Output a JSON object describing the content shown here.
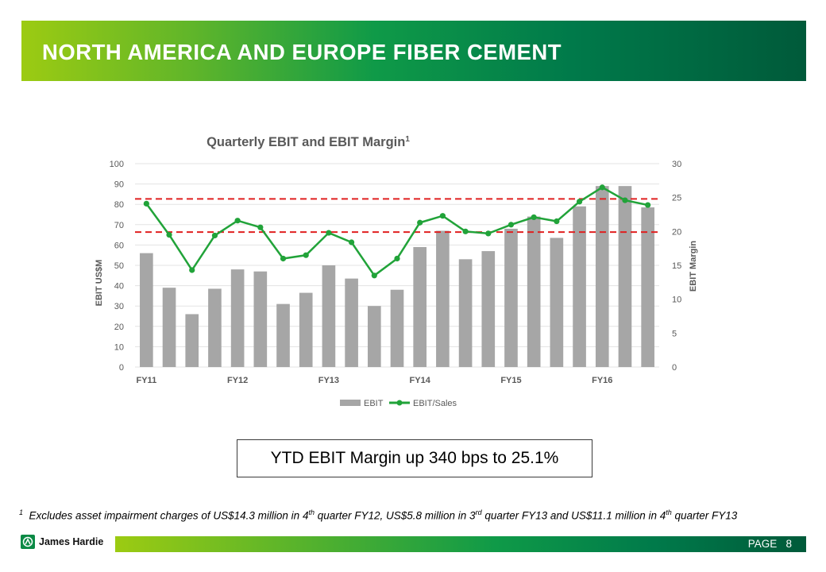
{
  "header": {
    "title": "NORTH AMERICA AND EUROPE FIBER CEMENT"
  },
  "callout": {
    "text": "YTD EBIT Margin up 340 bps to 25.1%"
  },
  "footnote": {
    "marker": "1",
    "p1": "Excludes asset impairment charges of US$14.3 million in 4",
    "s1": "th",
    "p2": " quarter FY12, US$5.8 million in 3",
    "s2": "rd",
    "p3": " quarter FY13 and US$11.1 million in 4",
    "s3": "th",
    "p4": " quarter FY13"
  },
  "footer": {
    "brand": "James Hardie",
    "page_label": "PAGE",
    "page_number": "8"
  },
  "colors": {
    "bar": "#a6a6a6",
    "line": "#21a339",
    "ref_line": "#e02020"
  },
  "chart_data": {
    "type": "bar",
    "title": "Quarterly EBIT and EBIT Margin",
    "title_superscript": "1",
    "ylabel": "EBIT US$M",
    "y2label": "EBIT Margin",
    "ylim": [
      0,
      100
    ],
    "y2lim": [
      0,
      30
    ],
    "yticks": [
      0,
      10,
      20,
      30,
      40,
      50,
      60,
      70,
      80,
      90,
      100
    ],
    "y2ticks": [
      0,
      5,
      10,
      15,
      20,
      25,
      30
    ],
    "category_labels": [
      "FY11",
      "FY12",
      "FY13",
      "FY14",
      "FY15",
      "FY16"
    ],
    "categories": [
      "FY11 Q1",
      "FY11 Q2",
      "FY11 Q3",
      "FY11 Q4",
      "FY12 Q1",
      "FY12 Q2",
      "FY12 Q3",
      "FY12 Q4",
      "FY13 Q1",
      "FY13 Q2",
      "FY13 Q3",
      "FY13 Q4",
      "FY14 Q1",
      "FY14 Q2",
      "FY14 Q3",
      "FY14 Q4",
      "FY15 Q1",
      "FY15 Q2",
      "FY15 Q3",
      "FY15 Q4",
      "FY16 Q1",
      "FY16 Q2",
      "FY16 Q3"
    ],
    "series": [
      {
        "name": "EBIT",
        "type": "bar",
        "axis": "left",
        "values": [
          56,
          39,
          26,
          38.5,
          48,
          47,
          31,
          36.5,
          50,
          43.5,
          30,
          38,
          59,
          67,
          53,
          57,
          68,
          74,
          63.5,
          79,
          89,
          89,
          78.5
        ]
      },
      {
        "name": "EBIT/Sales",
        "type": "line",
        "axis": "right",
        "values": [
          24.1,
          19.5,
          14.3,
          19.4,
          21.6,
          20.6,
          16,
          16.5,
          19.8,
          18.4,
          13.5,
          16,
          21.3,
          22.3,
          20,
          19.7,
          21,
          22.1,
          21.5,
          24.4,
          26.5,
          24.6,
          23.9
        ]
      }
    ],
    "reference_lines": [
      24.8,
      19.9
    ],
    "legend": "bottom"
  }
}
